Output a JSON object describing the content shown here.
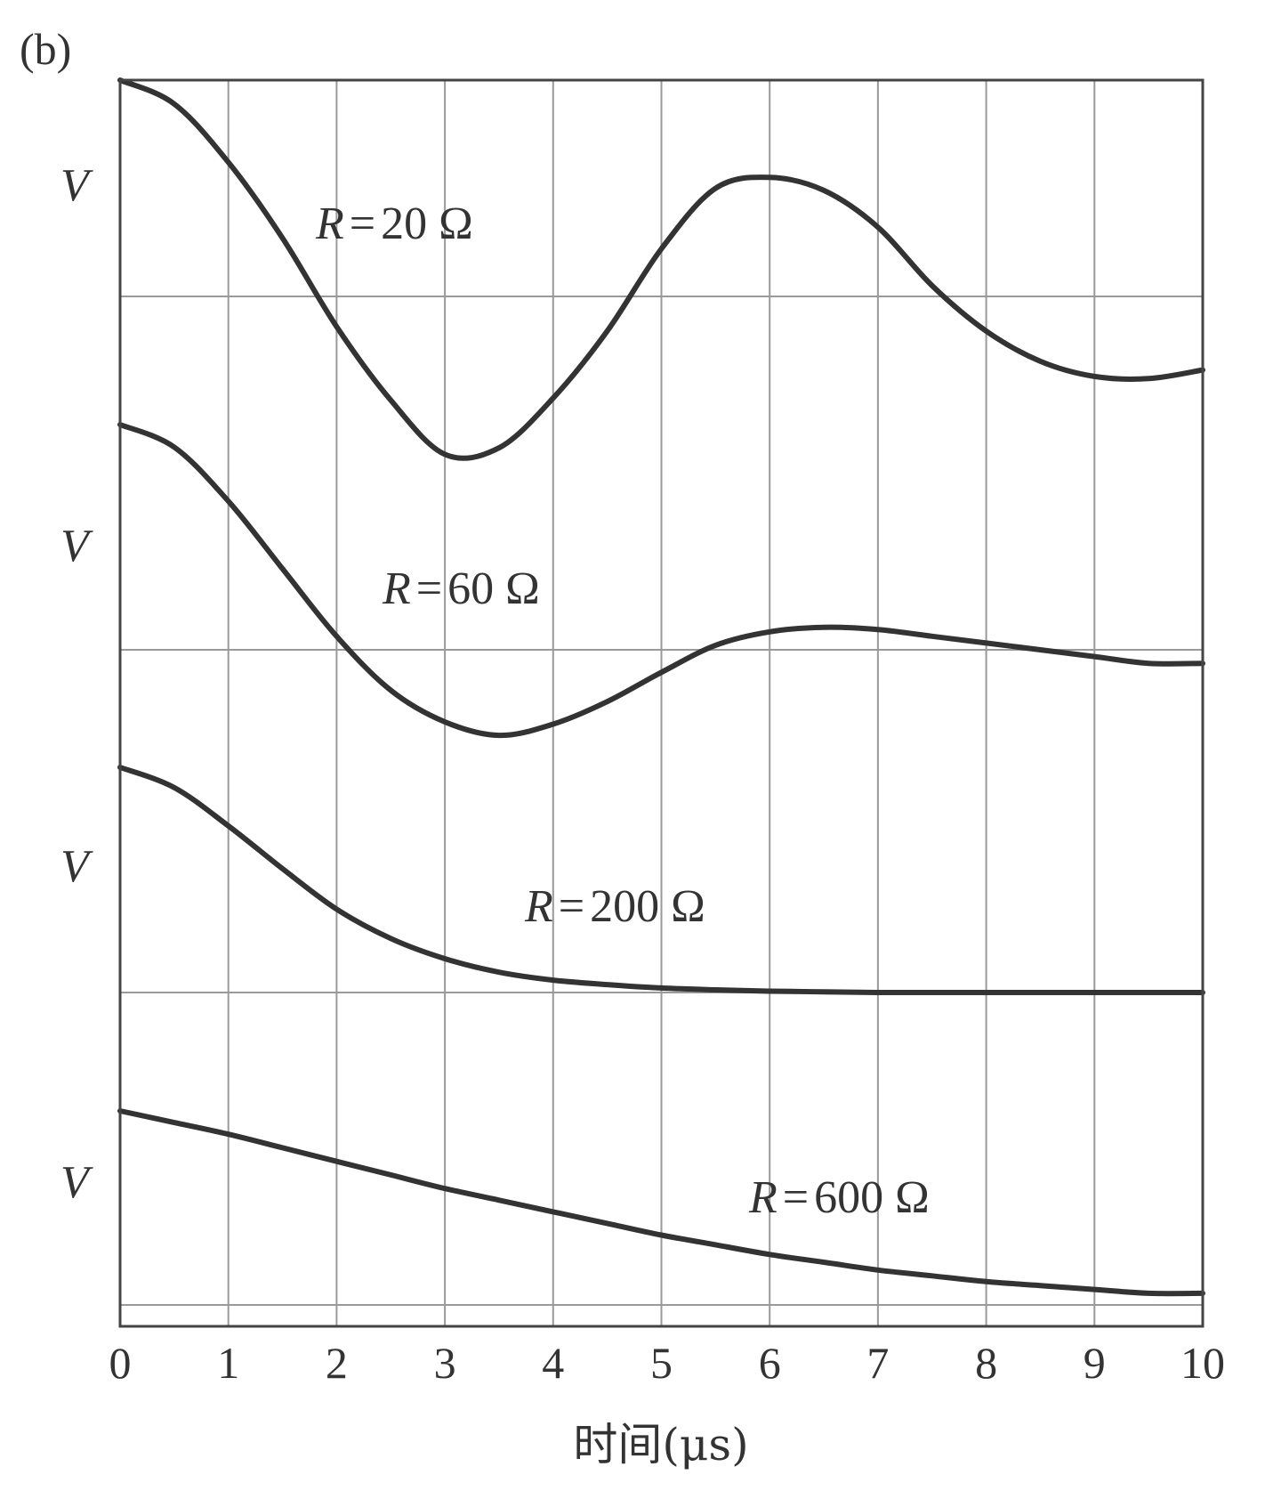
{
  "panel_label": "(b)",
  "chart_data": {
    "type": "line",
    "xlabel": "时间(μs)",
    "ylabel": "V",
    "xlim": [
      0,
      10
    ],
    "x_ticks": [
      "0",
      "1",
      "2",
      "3",
      "4",
      "5",
      "6",
      "7",
      "8",
      "9",
      "10"
    ],
    "grid": true,
    "stacked_panels": 4,
    "panels": [
      {
        "ylabel": "V",
        "label": {
          "name": "R",
          "eq": "=",
          "value": "20 Ω"
        },
        "x": [
          0,
          0.5,
          1,
          1.5,
          2,
          2.5,
          3,
          3.5,
          4,
          4.5,
          5,
          5.5,
          6,
          6.5,
          7,
          7.5,
          8,
          8.5,
          9,
          9.5,
          10
        ],
        "y": [
          1.0,
          0.89,
          0.62,
          0.27,
          -0.14,
          -0.48,
          -0.73,
          -0.7,
          -0.47,
          -0.16,
          0.22,
          0.5,
          0.55,
          0.49,
          0.32,
          0.05,
          -0.16,
          -0.3,
          -0.37,
          -0.38,
          -0.34
        ]
      },
      {
        "ylabel": "V",
        "label": {
          "name": "R",
          "eq": "=",
          "value": "60 Ω"
        },
        "x": [
          0,
          0.5,
          1,
          1.5,
          2,
          2.5,
          3,
          3.5,
          4,
          4.5,
          5,
          5.5,
          6,
          6.5,
          7,
          7.5,
          8,
          8.5,
          9,
          9.5,
          10
        ],
        "y": [
          1.0,
          0.9,
          0.66,
          0.36,
          0.06,
          -0.18,
          -0.32,
          -0.38,
          -0.33,
          -0.23,
          -0.1,
          0.02,
          0.08,
          0.1,
          0.09,
          0.06,
          0.03,
          0.0,
          -0.03,
          -0.06,
          -0.06
        ]
      },
      {
        "ylabel": "V",
        "label": {
          "name": "R",
          "eq": "=",
          "value": "200 Ω"
        },
        "x": [
          0,
          0.5,
          1,
          1.5,
          2,
          2.5,
          3,
          3.5,
          4,
          4.5,
          5,
          5.5,
          6,
          6.5,
          7,
          7.5,
          8,
          8.5,
          9,
          9.5,
          10
        ],
        "y": [
          1.0,
          0.91,
          0.74,
          0.55,
          0.37,
          0.24,
          0.15,
          0.09,
          0.055,
          0.035,
          0.02,
          0.012,
          0.006,
          0.003,
          0.0,
          0.0,
          0.0,
          0.0,
          0.0,
          0.0,
          0.0
        ]
      },
      {
        "ylabel": "V",
        "label": {
          "name": "R",
          "eq": "=",
          "value": "600 Ω"
        },
        "x": [
          0,
          0.5,
          1,
          1.5,
          2,
          2.5,
          3,
          3.5,
          4,
          4.5,
          5,
          5.5,
          6,
          6.5,
          7,
          7.5,
          8,
          8.5,
          9,
          9.5,
          10
        ],
        "y": [
          1.0,
          0.94,
          0.88,
          0.81,
          0.74,
          0.67,
          0.6,
          0.54,
          0.48,
          0.42,
          0.36,
          0.31,
          0.26,
          0.22,
          0.18,
          0.15,
          0.12,
          0.1,
          0.08,
          0.06,
          0.06
        ]
      }
    ]
  }
}
